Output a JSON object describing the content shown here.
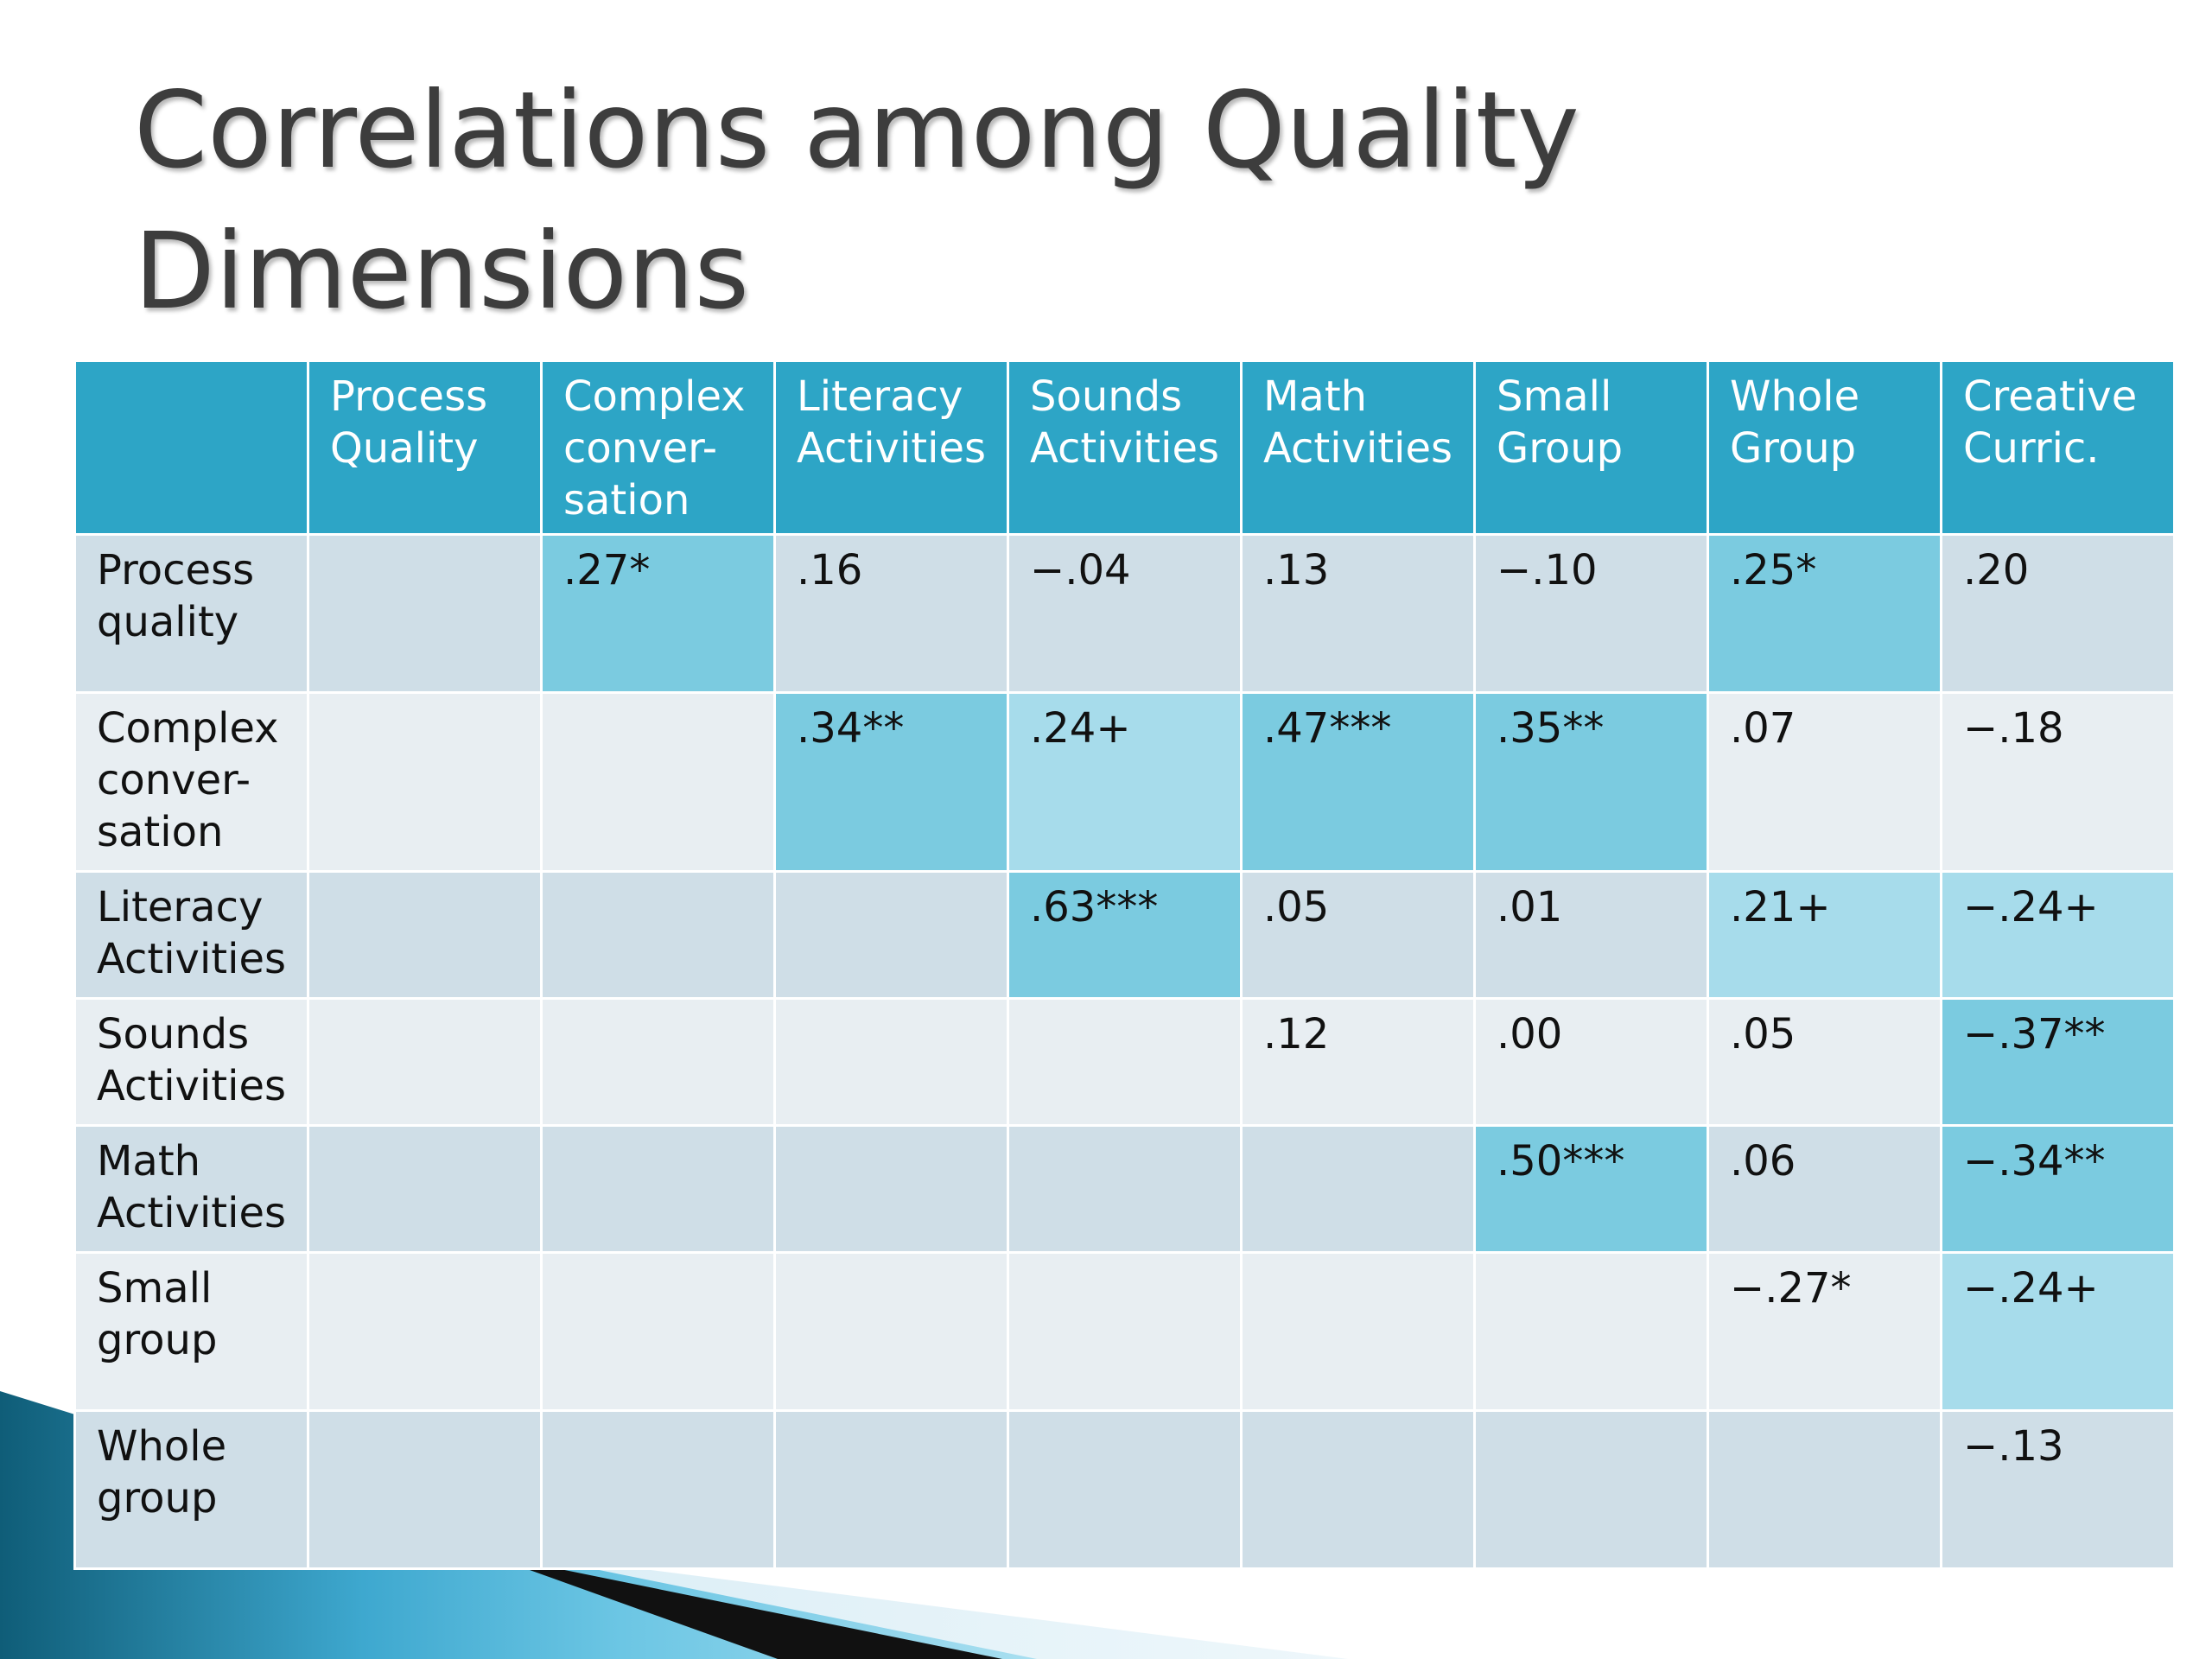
{
  "slide": {
    "title": "Correlations among Quality Dimensions"
  },
  "table": {
    "corner": "",
    "columns": [
      "Process\nQuality",
      "Complex\nconver-\nsation",
      "Literacy\nActivities",
      "Sounds\nActivities",
      "Math\nActivities",
      "Small\nGroup",
      "Whole\nGroup",
      "Creative\nCurric."
    ],
    "rows": [
      {
        "label": "Process\nquality",
        "cells": [
          "",
          ".27*",
          ".16",
          "−.04",
          ".13",
          "−.10",
          ".25*",
          ".20"
        ]
      },
      {
        "label": "Complex\nconver-\nsation",
        "cells": [
          "",
          "",
          ".34**",
          ".24+",
          ".47***",
          ".35**",
          ".07",
          "−.18"
        ]
      },
      {
        "label": "Literacy\nActivities",
        "cells": [
          "",
          "",
          "",
          ".63***",
          ".05",
          ".01",
          ".21+",
          "−.24+"
        ]
      },
      {
        "label": "Sounds\nActivities",
        "cells": [
          "",
          "",
          "",
          "",
          ".12",
          ".00",
          ".05",
          "−.37**"
        ]
      },
      {
        "label": "Math\nActivities",
        "cells": [
          "",
          "",
          "",
          "",
          "",
          ".50***",
          ".06",
          "−.34**"
        ]
      },
      {
        "label": "Small\ngroup",
        "cells": [
          "",
          "",
          "",
          "",
          "",
          "",
          "−.27*",
          "−.24+"
        ]
      },
      {
        "label": "Whole\ngroup",
        "cells": [
          "",
          "",
          "",
          "",
          "",
          "",
          "",
          "−.13"
        ]
      }
    ]
  },
  "colors": {
    "header": "#2da5c6",
    "row_odd": "#cfdee7",
    "row_even": "#e8eef2",
    "highlight_strong": "#7bcbe0",
    "highlight_light": "#a7dceb",
    "title_text": "#3d3d3d",
    "accent_dark": "#0f5d78"
  }
}
